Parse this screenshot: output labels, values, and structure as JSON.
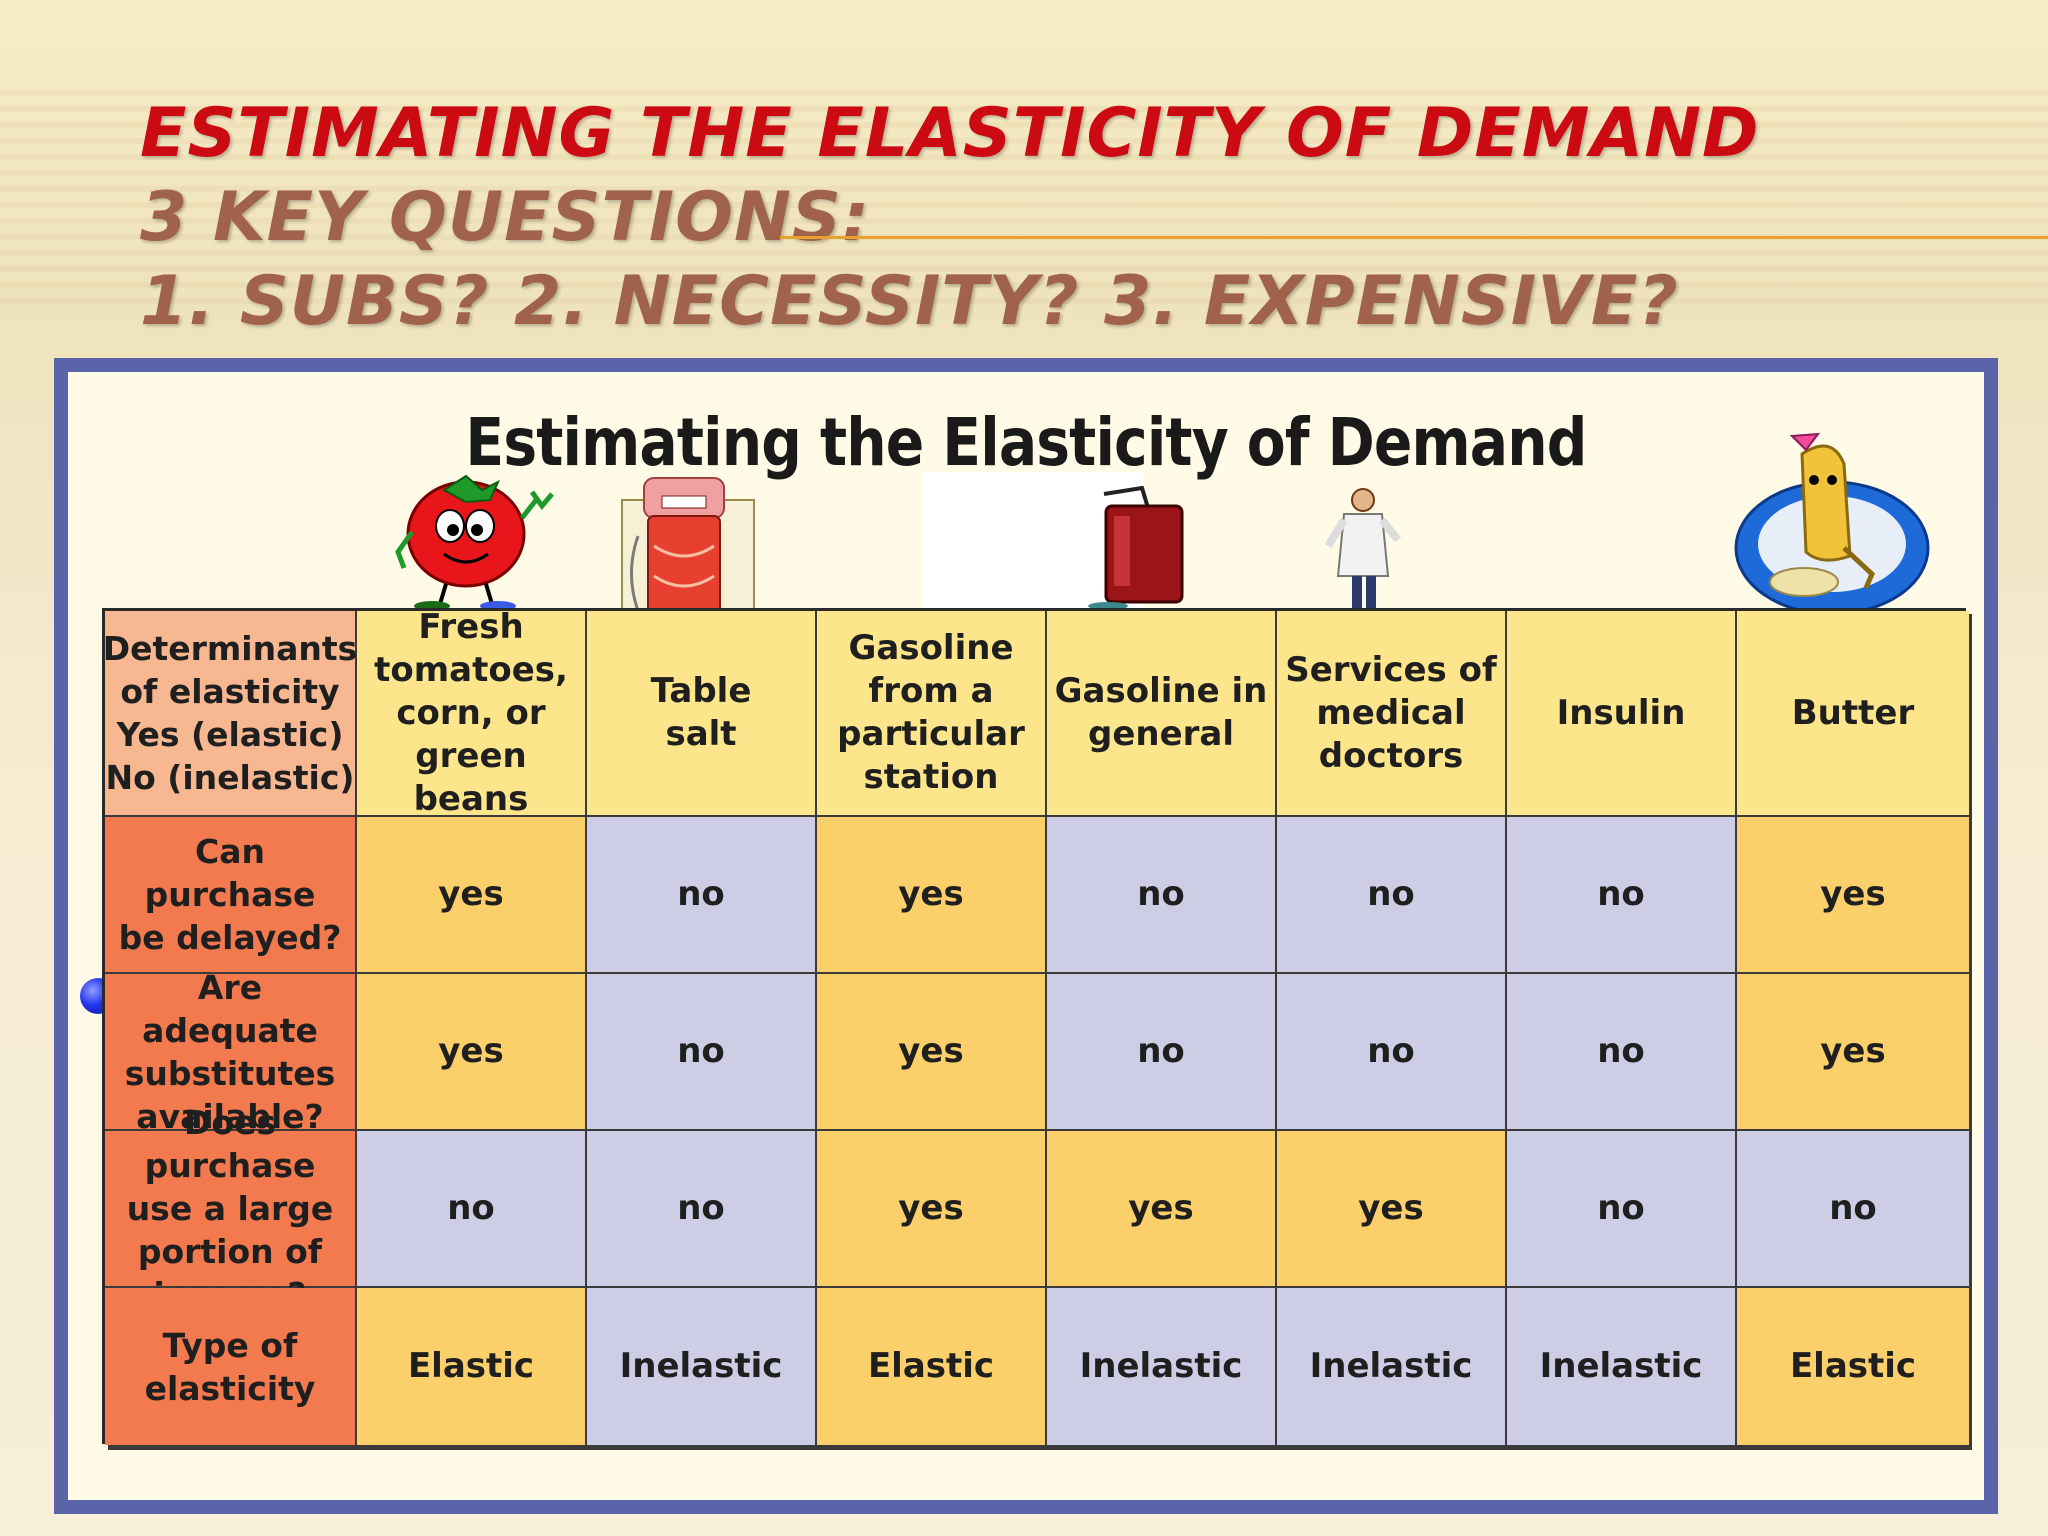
{
  "slide": {
    "title_line1": "ESTIMATING THE ELASTICITY OF DEMAND",
    "title_line2": "3 KEY QUESTIONS:",
    "title_line3": "1. SUBS?  2. NECESSITY?  3. EXPENSIVE?"
  },
  "figure": {
    "title": "Estimating the Elasticity of Demand",
    "corner_label": "Determinants\nof elasticity\nYes (elastic)\nNo (inelastic)",
    "columns": [
      "Fresh\ntomatoes,\ncorn, or\ngreen beans",
      "Table\nsalt",
      "Gasoline\nfrom a\nparticular\nstation",
      "Gasoline in\ngeneral",
      "Services of\nmedical\ndoctors",
      "Insulin",
      "Butter"
    ],
    "rows": [
      {
        "label": "Can purchase\nbe delayed?",
        "values": [
          "yes",
          "no",
          "yes",
          "no",
          "no",
          "no",
          "yes"
        ]
      },
      {
        "label": "Are adequate\nsubstitutes\navailable?",
        "values": [
          "yes",
          "no",
          "yes",
          "no",
          "no",
          "no",
          "yes"
        ]
      },
      {
        "label": "Does purchase\nuse a large\nportion of\nincome?",
        "values": [
          "no",
          "no",
          "yes",
          "yes",
          "yes",
          "no",
          "no"
        ]
      },
      {
        "label": "Type of\nelasticity",
        "values": [
          "Elastic",
          "Inelastic",
          "Elastic",
          "Inelastic",
          "Inelastic",
          "Inelastic",
          "Elastic"
        ]
      }
    ],
    "illustrations": [
      "tomato-icon",
      "salt-shaker-icon",
      "gas-can-icon",
      "doctor-icon",
      "butter-icon"
    ],
    "colors": {
      "yes_cell": "#fbcf6a",
      "no_cell": "#cdcde6",
      "header": "#fce58a",
      "row_label": "#f37a4f",
      "frame": "#5a64a8"
    }
  }
}
